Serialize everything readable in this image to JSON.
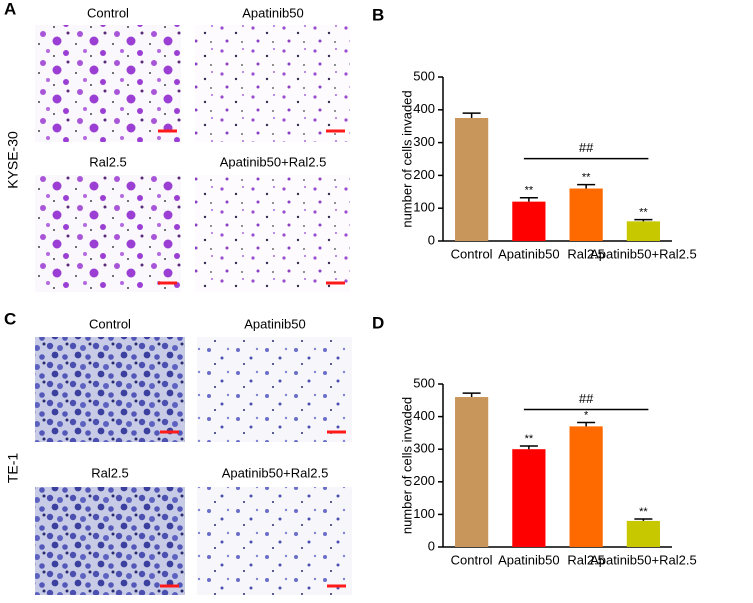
{
  "panels": [
    {
      "label": "A",
      "row_label": "KYSE-30",
      "captions": [
        "Control",
        "Apatinib50",
        "Ral2.5",
        "Apatinib50+Ral2.5"
      ]
    },
    {
      "label": "C",
      "row_label": "TE-1",
      "captions": [
        "Control",
        "Apatinib50",
        "Ral2.5",
        "Apatinib50+Ral2.5"
      ]
    }
  ],
  "chart_data": [
    {
      "type": "bar",
      "panel": "B",
      "y_label": "number  of cells invaded",
      "categories": [
        "Control",
        "Apatinib50",
        "Ral2.5",
        "Apatinib50+Ral2.5"
      ],
      "values": [
        375,
        120,
        160,
        60
      ],
      "errors": [
        15,
        12,
        12,
        5
      ],
      "colors": [
        "#c8965a",
        "#ff0000",
        "#ff6a00",
        "#c8c800"
      ],
      "significance": [
        null,
        "**",
        "**",
        "**"
      ],
      "bracket_label": "##",
      "ylim": [
        0,
        500
      ],
      "yticks": [
        0,
        100,
        200,
        300,
        400,
        500
      ]
    },
    {
      "type": "bar",
      "panel": "D",
      "y_label": "number  of cells invaded",
      "categories": [
        "Control",
        "Apatinib50",
        "Ral2.5",
        "Apatinib50+Ral2.5"
      ],
      "values": [
        460,
        300,
        370,
        80
      ],
      "errors": [
        12,
        10,
        12,
        6
      ],
      "colors": [
        "#c8965a",
        "#ff0000",
        "#ff6a00",
        "#c8c800"
      ],
      "significance": [
        null,
        "**",
        "*",
        "**"
      ],
      "bracket_label": "##",
      "ylim": [
        0,
        500
      ],
      "yticks": [
        0,
        100,
        200,
        300,
        400,
        500
      ]
    }
  ]
}
